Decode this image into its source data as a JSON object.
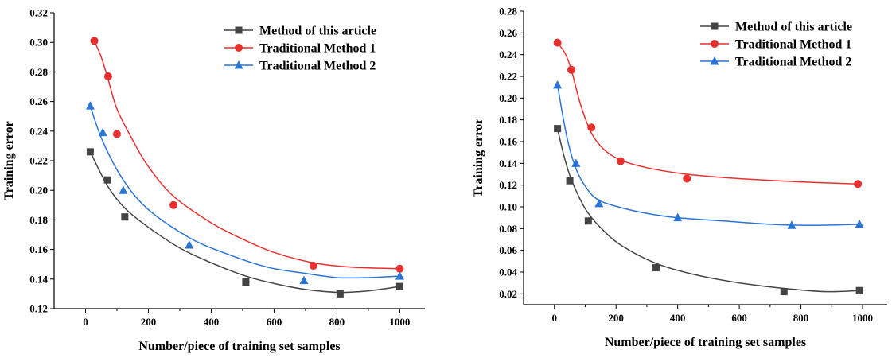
{
  "chart_data": [
    {
      "type": "scatter",
      "xlabel": "Number/piece of training set samples",
      "ylabel": "Training error",
      "xlim": [
        -100,
        1080
      ],
      "ylim": [
        0.12,
        0.32
      ],
      "xticks": [
        0,
        200,
        400,
        600,
        800,
        1000
      ],
      "yticks": [
        0.12,
        0.14,
        0.16,
        0.18,
        0.2,
        0.22,
        0.24,
        0.26,
        0.28,
        0.3,
        0.32
      ],
      "xtick_labels": [
        "0",
        "200",
        "400",
        "600",
        "800",
        "1000"
      ],
      "ytick_labels": [
        "0.12",
        "0.14",
        "0.16",
        "0.18",
        "0.20",
        "0.22",
        "0.24",
        "0.26",
        "0.28",
        "0.30",
        "0.32"
      ],
      "grid": false,
      "legend_position": "top-right",
      "series": [
        {
          "name": "Method of this article",
          "marker": "square",
          "color": "#444444",
          "points": [
            [
              15,
              0.226
            ],
            [
              70,
              0.207
            ],
            [
              125,
              0.182
            ],
            [
              510,
              0.138
            ],
            [
              810,
              0.13
            ],
            [
              1000,
              0.135
            ]
          ],
          "fit": [
            [
              15,
              0.226
            ],
            [
              70,
              0.203
            ],
            [
              125,
              0.188
            ],
            [
              200,
              0.175
            ],
            [
              300,
              0.161
            ],
            [
              400,
              0.151
            ],
            [
              510,
              0.142
            ],
            [
              600,
              0.137
            ],
            [
              700,
              0.133
            ],
            [
              810,
              0.131
            ],
            [
              900,
              0.132
            ],
            [
              1000,
              0.135
            ]
          ]
        },
        {
          "name": "Traditional Method 1",
          "marker": "circle",
          "color": "#e8312f",
          "points": [
            [
              28,
              0.301
            ],
            [
              72,
              0.277
            ],
            [
              100,
              0.238
            ],
            [
              280,
              0.19
            ],
            [
              725,
              0.149
            ],
            [
              1000,
              0.147
            ]
          ],
          "fit": [
            [
              28,
              0.301
            ],
            [
              50,
              0.29
            ],
            [
              72,
              0.275
            ],
            [
              100,
              0.255
            ],
            [
              150,
              0.234
            ],
            [
              200,
              0.216
            ],
            [
              280,
              0.196
            ],
            [
              400,
              0.178
            ],
            [
              500,
              0.167
            ],
            [
              600,
              0.158
            ],
            [
              725,
              0.151
            ],
            [
              850,
              0.148
            ],
            [
              1000,
              0.147
            ]
          ]
        },
        {
          "name": "Traditional Method 2",
          "marker": "triangle",
          "color": "#2a74d6",
          "points": [
            [
              15,
              0.257
            ],
            [
              55,
              0.239
            ],
            [
              120,
              0.2
            ],
            [
              330,
              0.163
            ],
            [
              695,
              0.139
            ],
            [
              1000,
              0.142
            ]
          ],
          "fit": [
            [
              15,
              0.257
            ],
            [
              55,
              0.233
            ],
            [
              120,
              0.207
            ],
            [
              200,
              0.187
            ],
            [
              330,
              0.168
            ],
            [
              450,
              0.157
            ],
            [
              580,
              0.148
            ],
            [
              695,
              0.144
            ],
            [
              800,
              0.141
            ],
            [
              900,
              0.141
            ],
            [
              1000,
              0.142
            ]
          ]
        }
      ]
    },
    {
      "type": "scatter",
      "xlabel": "Number/piece of training set samples",
      "ylabel": "Training error",
      "xlim": [
        -100,
        1080
      ],
      "ylim": [
        0.01,
        0.28
      ],
      "xticks": [
        0,
        200,
        400,
        600,
        800,
        1000
      ],
      "yticks": [
        0.02,
        0.04,
        0.06,
        0.08,
        0.1,
        0.12,
        0.14,
        0.16,
        0.18,
        0.2,
        0.22,
        0.24,
        0.26,
        0.28
      ],
      "xtick_labels": [
        "0",
        "200",
        "400",
        "600",
        "800",
        "1000"
      ],
      "ytick_labels": [
        "0.02",
        "0.04",
        "0.06",
        "0.08",
        "0.10",
        "0.12",
        "0.14",
        "0.16",
        "0.18",
        "0.20",
        "0.22",
        "0.24",
        "0.26",
        "0.28"
      ],
      "grid": false,
      "legend_position": "top-right",
      "series": [
        {
          "name": "Method of this article",
          "marker": "square",
          "color": "#444444",
          "points": [
            [
              10,
              0.172
            ],
            [
              50,
              0.124
            ],
            [
              110,
              0.087
            ],
            [
              330,
              0.044
            ],
            [
              745,
              0.022
            ],
            [
              990,
              0.023
            ]
          ],
          "fit": [
            [
              10,
              0.172
            ],
            [
              30,
              0.148
            ],
            [
              50,
              0.129
            ],
            [
              80,
              0.109
            ],
            [
              110,
              0.094
            ],
            [
              160,
              0.078
            ],
            [
              220,
              0.064
            ],
            [
              330,
              0.048
            ],
            [
              450,
              0.038
            ],
            [
              600,
              0.03
            ],
            [
              745,
              0.025
            ],
            [
              880,
              0.022
            ],
            [
              990,
              0.023
            ]
          ]
        },
        {
          "name": "Traditional Method 1",
          "marker": "circle",
          "color": "#e8312f",
          "points": [
            [
              10,
              0.251
            ],
            [
              55,
              0.226
            ],
            [
              120,
              0.173
            ],
            [
              215,
              0.142
            ],
            [
              430,
              0.126
            ],
            [
              985,
              0.121
            ]
          ],
          "fit": [
            [
              10,
              0.251
            ],
            [
              35,
              0.241
            ],
            [
              55,
              0.226
            ],
            [
              85,
              0.194
            ],
            [
              120,
              0.168
            ],
            [
              160,
              0.153
            ],
            [
              215,
              0.143
            ],
            [
              300,
              0.136
            ],
            [
              430,
              0.13
            ],
            [
              600,
              0.126
            ],
            [
              800,
              0.123
            ],
            [
              985,
              0.121
            ]
          ]
        },
        {
          "name": "Traditional Method 2",
          "marker": "triangle",
          "color": "#2a74d6",
          "points": [
            [
              10,
              0.212
            ],
            [
              70,
              0.14
            ],
            [
              145,
              0.103
            ],
            [
              400,
              0.09
            ],
            [
              770,
              0.083
            ],
            [
              990,
              0.084
            ]
          ],
          "fit": [
            [
              10,
              0.212
            ],
            [
              40,
              0.165
            ],
            [
              70,
              0.135
            ],
            [
              105,
              0.117
            ],
            [
              145,
              0.106
            ],
            [
              220,
              0.099
            ],
            [
              300,
              0.094
            ],
            [
              400,
              0.09
            ],
            [
              550,
              0.087
            ],
            [
              700,
              0.084
            ],
            [
              830,
              0.083
            ],
            [
              990,
              0.084
            ]
          ]
        }
      ]
    }
  ]
}
